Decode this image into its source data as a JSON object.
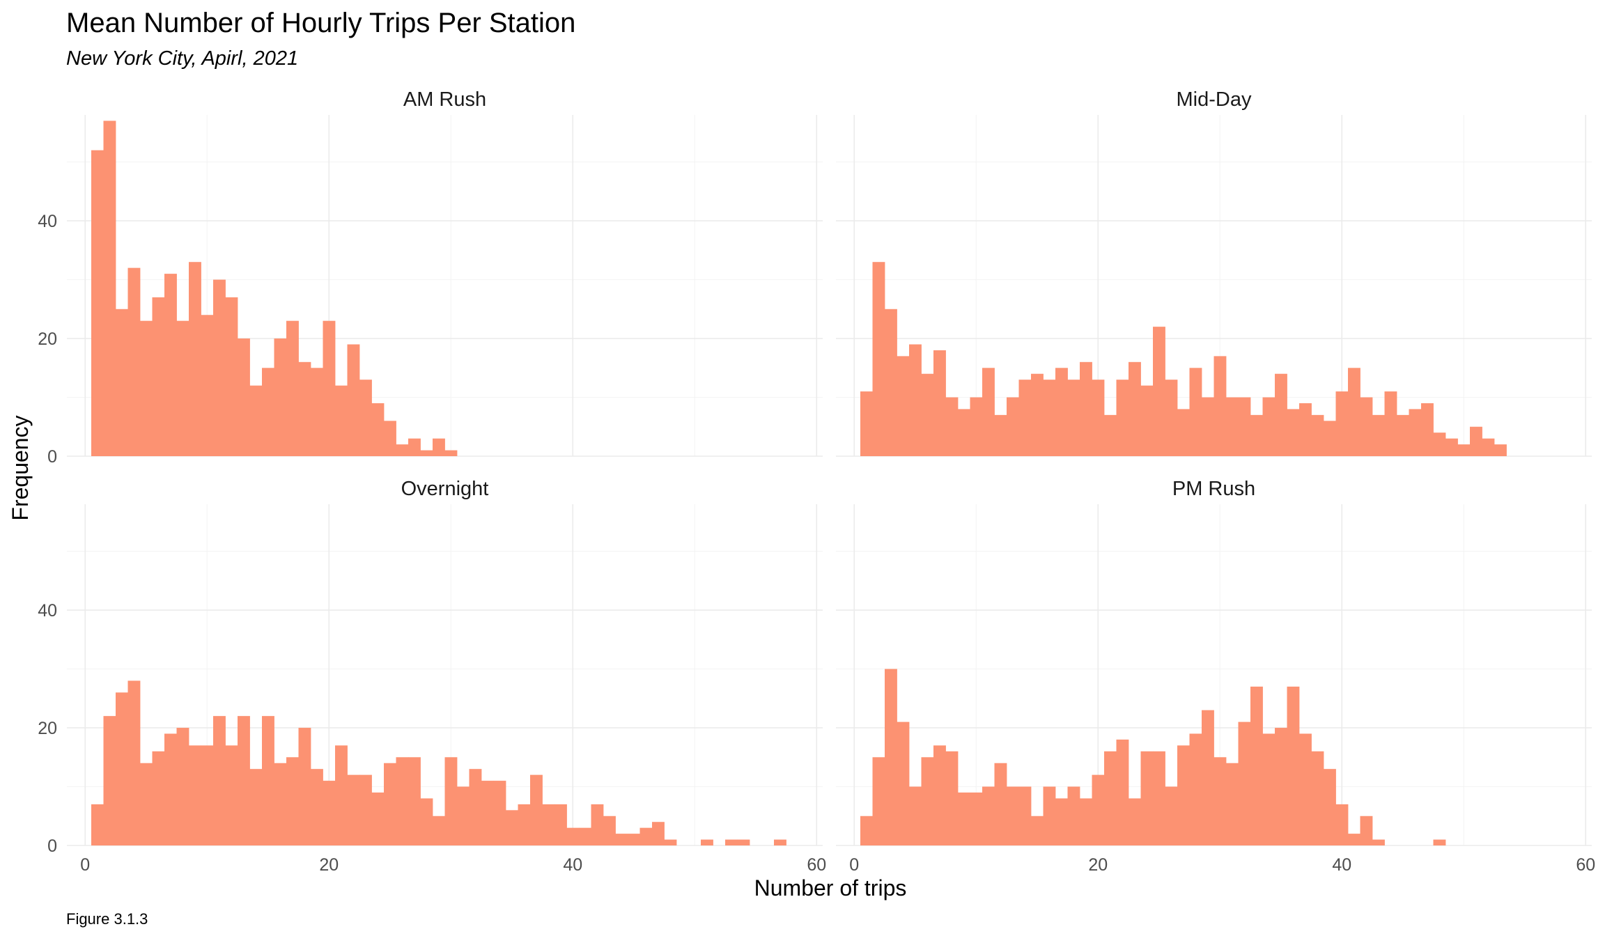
{
  "title": "Mean Number of Hourly Trips Per Station",
  "subtitle": "New York City, Apirl, 2021",
  "caption": "Figure 3.1.3",
  "bar_color": "#FC9272",
  "chart_data": {
    "type": "bar",
    "xlabel": "Number of trips",
    "ylabel": "Frequency",
    "xlim": [
      -1.5,
      60.5
    ],
    "ylim": [
      0,
      58
    ],
    "x_ticks": [
      0,
      20,
      40,
      60
    ],
    "y_ticks": [
      0,
      20,
      40
    ],
    "bin_start": 0.5,
    "bin_width": 1,
    "panels": [
      {
        "name": "AM Rush",
        "values": [
          52,
          57,
          25,
          32,
          23,
          27,
          31,
          23,
          33,
          24,
          30,
          27,
          20,
          12,
          15,
          20,
          23,
          16,
          15,
          23,
          12,
          19,
          13,
          9,
          6,
          2,
          3,
          1,
          3,
          1
        ]
      },
      {
        "name": "Mid-Day",
        "values": [
          11,
          33,
          25,
          17,
          19,
          14,
          18,
          10,
          8,
          10,
          15,
          7,
          10,
          13,
          14,
          13,
          15,
          13,
          16,
          13,
          7,
          13,
          16,
          12,
          22,
          13,
          8,
          15,
          10,
          17,
          10,
          10,
          7,
          10,
          14,
          8,
          9,
          7,
          6,
          11,
          15,
          10,
          7,
          11,
          7,
          8,
          9,
          4,
          3,
          2,
          5,
          3,
          2
        ]
      },
      {
        "name": "Overnight",
        "values": [
          7,
          22,
          26,
          28,
          14,
          16,
          19,
          20,
          17,
          17,
          22,
          17,
          22,
          13,
          22,
          14,
          15,
          20,
          13,
          11,
          17,
          12,
          12,
          9,
          14,
          15,
          15,
          8,
          5,
          15,
          10,
          13,
          11,
          11,
          6,
          7,
          12,
          7,
          7,
          3,
          3,
          7,
          5,
          2,
          2,
          3,
          4,
          1,
          0,
          0,
          1,
          0,
          1,
          1,
          0,
          0,
          1
        ]
      },
      {
        "name": "PM Rush",
        "values": [
          5,
          15,
          30,
          21,
          10,
          15,
          17,
          16,
          9,
          9,
          10,
          14,
          10,
          10,
          5,
          10,
          8,
          10,
          8,
          12,
          16,
          18,
          8,
          16,
          16,
          10,
          17,
          19,
          23,
          15,
          14,
          21,
          27,
          19,
          20,
          27,
          19,
          16,
          13,
          7,
          2,
          5,
          1,
          0,
          0,
          0,
          0,
          1
        ]
      }
    ]
  }
}
